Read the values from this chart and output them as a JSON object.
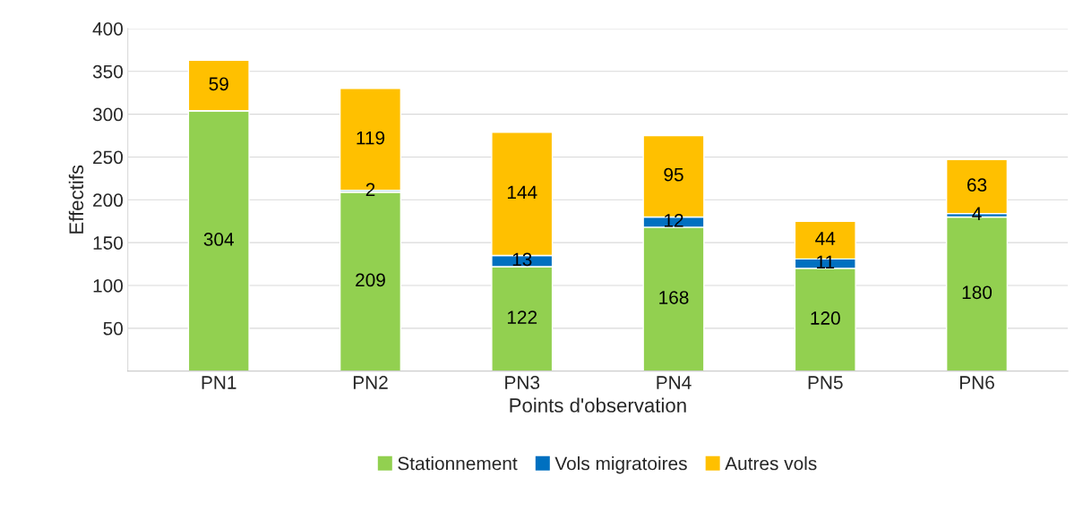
{
  "chart_data": {
    "type": "bar",
    "stacked": true,
    "xlabel": "Points d'observation",
    "ylabel": "Effectifs",
    "categories": [
      "PN1",
      "PN2",
      "PN3",
      "PN4",
      "PN5",
      "PN6"
    ],
    "series": [
      {
        "name": "Stationnement",
        "color": "#92d050",
        "values": [
          304,
          209,
          122,
          168,
          120,
          180
        ]
      },
      {
        "name": "Vols migratoires",
        "color": "#0070c0",
        "values": [
          null,
          2,
          13,
          12,
          11,
          4
        ]
      },
      {
        "name": "Autres vols",
        "color": "#ffc000",
        "values": [
          59,
          119,
          144,
          95,
          44,
          63
        ]
      }
    ],
    "ylim": [
      0,
      400
    ],
    "yticks": [
      50,
      100,
      150,
      200,
      250,
      300,
      350,
      400
    ],
    "grid": "y",
    "legend": "bottom",
    "data_labels": true
  }
}
